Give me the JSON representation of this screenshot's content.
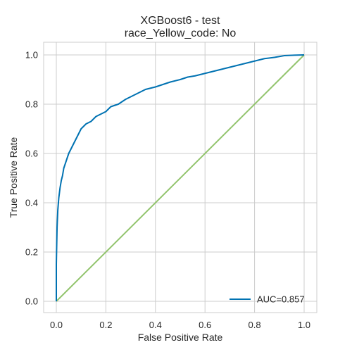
{
  "chart_data": {
    "type": "line",
    "title": "XGBoost6 - test",
    "subtitle": "race_Yellow_code: No",
    "xlabel": "False Positive Rate",
    "ylabel": "True Positive Rate",
    "xlim": [
      0.0,
      1.0
    ],
    "ylim": [
      0.0,
      1.0
    ],
    "xticks": [
      "0.0",
      "0.2",
      "0.4",
      "0.6",
      "0.8",
      "1.0"
    ],
    "yticks": [
      "0.0",
      "0.2",
      "0.4",
      "0.6",
      "0.8",
      "1.0"
    ],
    "grid": true,
    "legend_position": "lower-right",
    "series": [
      {
        "name": "AUC=0.857",
        "color": "#0072b2",
        "x": [
          0.0,
          0.0,
          0.003,
          0.006,
          0.01,
          0.015,
          0.02,
          0.025,
          0.03,
          0.04,
          0.05,
          0.06,
          0.07,
          0.08,
          0.09,
          0.1,
          0.12,
          0.14,
          0.16,
          0.18,
          0.2,
          0.22,
          0.25,
          0.28,
          0.3,
          0.33,
          0.36,
          0.4,
          0.43,
          0.46,
          0.5,
          0.53,
          0.56,
          0.6,
          0.64,
          0.68,
          0.72,
          0.76,
          0.8,
          0.84,
          0.88,
          0.92,
          0.96,
          1.0
        ],
        "y": [
          0.0,
          0.15,
          0.3,
          0.37,
          0.42,
          0.46,
          0.49,
          0.51,
          0.54,
          0.57,
          0.6,
          0.62,
          0.64,
          0.66,
          0.68,
          0.7,
          0.72,
          0.73,
          0.75,
          0.76,
          0.77,
          0.79,
          0.8,
          0.82,
          0.83,
          0.845,
          0.86,
          0.87,
          0.88,
          0.89,
          0.9,
          0.91,
          0.915,
          0.925,
          0.935,
          0.945,
          0.955,
          0.965,
          0.975,
          0.985,
          0.99,
          0.997,
          0.999,
          1.0
        ]
      },
      {
        "name": "",
        "color": "#92c46d",
        "x": [
          0.0,
          1.0
        ],
        "y": [
          0.0,
          1.0
        ]
      }
    ]
  }
}
